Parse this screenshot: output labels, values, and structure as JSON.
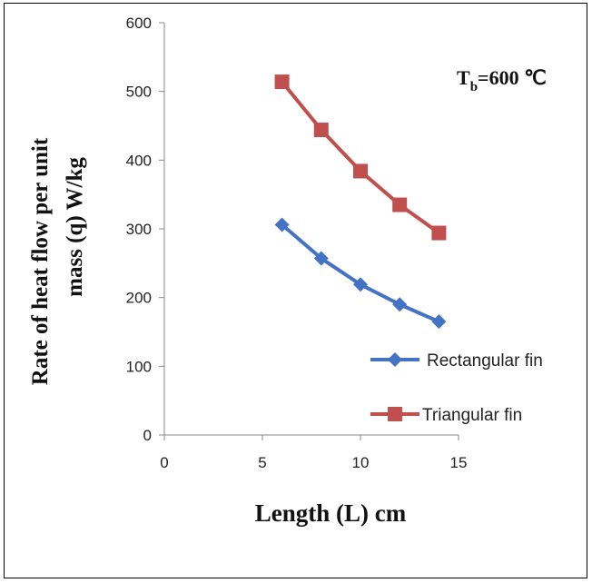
{
  "chart_data": {
    "type": "line",
    "title": "",
    "xlabel": "Length (L) cm",
    "ylabel_lines": [
      "Rate of heat flow per unit",
      "mass (q) W/kg"
    ],
    "annotation": {
      "main": "T",
      "sub": "b",
      "rest": "=600 ℃"
    },
    "xlim": [
      0,
      15
    ],
    "ylim": [
      0,
      600
    ],
    "xticks": [
      0,
      5,
      10,
      15
    ],
    "yticks": [
      0,
      100,
      200,
      300,
      400,
      500,
      600
    ],
    "grid": false,
    "legend_position": "bottom-right",
    "series": [
      {
        "name": "Rectangular fin",
        "marker": "diamond",
        "color": "#4472C4",
        "x": [
          6,
          8,
          10,
          12,
          14
        ],
        "y": [
          306,
          257,
          219,
          190,
          165
        ]
      },
      {
        "name": "Triangular fin",
        "marker": "square",
        "color": "#C0504D",
        "x": [
          6,
          8,
          10,
          12,
          14
        ],
        "y": [
          514,
          444,
          384,
          335,
          294
        ]
      }
    ]
  }
}
